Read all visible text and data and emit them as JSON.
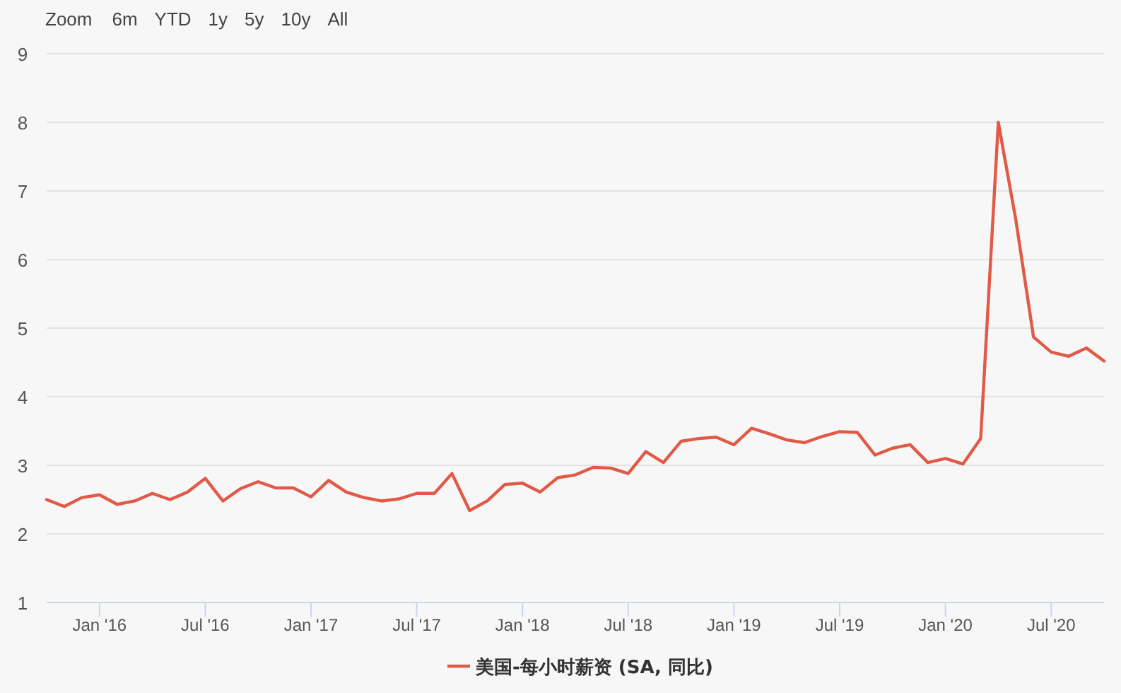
{
  "chart_data": {
    "type": "line",
    "annotations": [
      "Zoom",
      "6m",
      "YTD",
      "1y",
      "5y",
      "10y",
      "All"
    ],
    "x": [
      "2015-10",
      "2015-11",
      "2015-12",
      "2016-01",
      "2016-02",
      "2016-03",
      "2016-04",
      "2016-05",
      "2016-06",
      "2016-07",
      "2016-08",
      "2016-09",
      "2016-10",
      "2016-11",
      "2016-12",
      "2017-01",
      "2017-02",
      "2017-03",
      "2017-04",
      "2017-05",
      "2017-06",
      "2017-07",
      "2017-08",
      "2017-09",
      "2017-10",
      "2017-11",
      "2017-12",
      "2018-01",
      "2018-02",
      "2018-03",
      "2018-04",
      "2018-05",
      "2018-06",
      "2018-07",
      "2018-08",
      "2018-09",
      "2018-10",
      "2018-11",
      "2018-12",
      "2019-01",
      "2019-02",
      "2019-03",
      "2019-04",
      "2019-05",
      "2019-06",
      "2019-07",
      "2019-08",
      "2019-09",
      "2019-10",
      "2019-11",
      "2019-12",
      "2020-01",
      "2020-02",
      "2020-03",
      "2020-04",
      "2020-05",
      "2020-06",
      "2020-07",
      "2020-08",
      "2020-09",
      "2020-10"
    ],
    "series": [
      {
        "name": "美国-每小时薪资 (SA, 同比)",
        "color": "#e05a47",
        "values": [
          2.5,
          2.4,
          2.53,
          2.57,
          2.43,
          2.48,
          2.59,
          2.5,
          2.61,
          2.81,
          2.48,
          2.66,
          2.76,
          2.67,
          2.67,
          2.54,
          2.78,
          2.61,
          2.53,
          2.48,
          2.51,
          2.59,
          2.59,
          2.88,
          2.34,
          2.48,
          2.72,
          2.74,
          2.61,
          2.82,
          2.86,
          2.97,
          2.96,
          2.88,
          3.2,
          3.04,
          3.35,
          3.39,
          3.41,
          3.3,
          3.54,
          3.46,
          3.37,
          3.33,
          3.42,
          3.49,
          3.48,
          3.15,
          3.25,
          3.3,
          3.04,
          3.1,
          3.02,
          3.39,
          8.0,
          6.57,
          4.87,
          4.65,
          4.59,
          4.71,
          4.52
        ]
      }
    ],
    "xlim": [
      "2015-10",
      "2020-10"
    ],
    "xticks": [
      {
        "value": "2016-01",
        "label": "Jan '16"
      },
      {
        "value": "2016-07",
        "label": "Jul '16"
      },
      {
        "value": "2017-01",
        "label": "Jan '17"
      },
      {
        "value": "2017-07",
        "label": "Jul '17"
      },
      {
        "value": "2018-01",
        "label": "Jan '18"
      },
      {
        "value": "2018-07",
        "label": "Jul '18"
      },
      {
        "value": "2019-01",
        "label": "Jan '19"
      },
      {
        "value": "2019-07",
        "label": "Jul '19"
      },
      {
        "value": "2020-01",
        "label": "Jan '20"
      },
      {
        "value": "2020-07",
        "label": "Jul '20"
      }
    ],
    "ylim": [
      1,
      9
    ],
    "yticks": [
      1,
      2,
      3,
      4,
      5,
      6,
      7,
      8,
      9
    ],
    "grid": "y",
    "legend": "bottom",
    "marker": "none",
    "line_style": "solid"
  }
}
